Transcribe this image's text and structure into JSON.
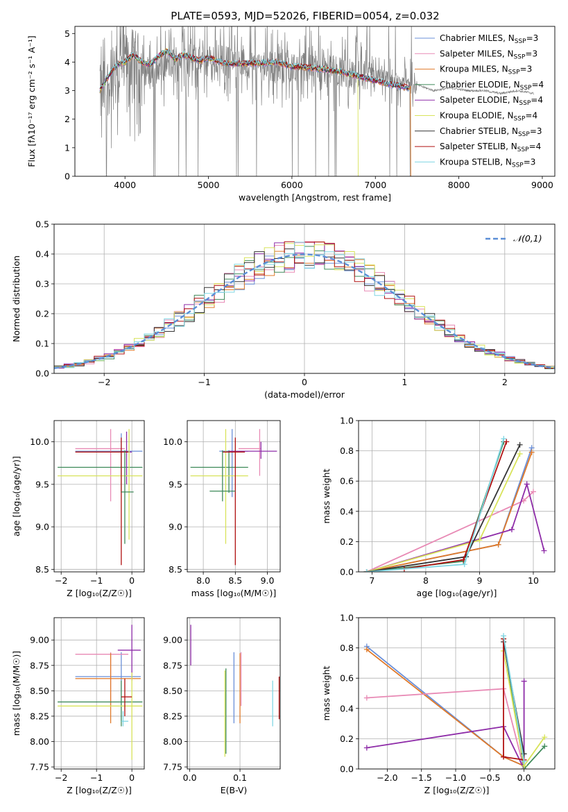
{
  "figure": {
    "title": "PLATE=0593, MJD=52026, FIBERID=0054, z=0.032"
  },
  "colors": {
    "palette": [
      "#6a8fd8",
      "#e88ab5",
      "#e07a2a",
      "#3f8a5a",
      "#8e2ca8",
      "#d8e35a",
      "#333333",
      "#b01010",
      "#7fd6e3"
    ],
    "observed": "#808080",
    "gaussian": "#5b8ed6",
    "grid": "#b0b0b0"
  },
  "chart_data": [
    {
      "type": "line",
      "id": "spectrum",
      "title": "PLATE=0593, MJD=52026, FIBERID=0054, z=0.032",
      "xlabel": "wavelength [Angstrom, rest frame]",
      "ylabel": "Flux [fλ10⁻¹⁷ erg cm⁻² s⁻¹ A⁻¹]",
      "xlim": [
        3400,
        9150
      ],
      "ylim": [
        0,
        5.25
      ],
      "xticks": [
        4000,
        5000,
        6000,
        7000,
        8000,
        9000
      ],
      "yticks": [
        0,
        1,
        2,
        3,
        4,
        5
      ],
      "grid": false,
      "legend_position": "top-right",
      "legend": [
        "Chabrier MILES, N_SSP=3",
        "Salpeter MILES, N_SSP=3",
        "Kroupa MILES, N_SSP=3",
        "Chabrier ELODIE, N_SSP=4",
        "Salpeter ELODIE, N_SSP=4",
        "Kroupa ELODIE, N_SSP=4",
        "Chabrier STELIB, N_SSP=3",
        "Salpeter STELIB, N_SSP=4",
        "Kroupa STELIB, N_SSP=3"
      ],
      "observed": {
        "x": [
          3700,
          3850,
          4000,
          4100,
          4300,
          4500,
          4700,
          4900,
          5100,
          5300,
          5500,
          5700,
          5900,
          6100,
          6300,
          6500,
          6700,
          6900,
          7100,
          7300,
          7500,
          7700,
          7900,
          8100,
          8300,
          8500,
          8700,
          8900
        ],
        "y": [
          2.8,
          3.4,
          3.9,
          4.1,
          3.6,
          3.9,
          4.2,
          4.0,
          4.1,
          4.0,
          3.9,
          3.9,
          3.8,
          3.9,
          3.8,
          3.7,
          3.6,
          3.5,
          3.4,
          3.3,
          3.2,
          3.0,
          3.1,
          3.0,
          3.0,
          2.9,
          3.0,
          2.9
        ],
        "noise_start": 3700,
        "noise_end": 7500
      },
      "model": {
        "x": [
          3700,
          3800,
          3900,
          4000,
          4100,
          4200,
          4300,
          4400,
          4500,
          4600,
          4700,
          4800,
          4900,
          5000,
          5200,
          5400,
          5600,
          5800,
          6000,
          6200,
          6400,
          6600,
          6800,
          7000,
          7200,
          7400
        ],
        "y": [
          3.0,
          3.5,
          3.9,
          4.0,
          4.25,
          4.0,
          3.9,
          4.2,
          4.4,
          4.1,
          4.25,
          4.15,
          4.05,
          4.15,
          3.95,
          3.95,
          3.95,
          4.0,
          3.85,
          3.8,
          3.75,
          3.65,
          3.5,
          3.35,
          3.2,
          3.1
        ]
      },
      "cutoffs": [
        {
          "series": 5,
          "x": 6790
        },
        {
          "series": 2,
          "x": 7420
        }
      ]
    },
    {
      "type": "histogram",
      "id": "residuals",
      "xlabel": "(data-model)/error",
      "ylabel": "Normed distribution",
      "xlim": [
        -2.5,
        2.5
      ],
      "ylim": [
        0,
        0.5
      ],
      "xticks": [
        -2,
        -1,
        0,
        1,
        2
      ],
      "yticks": [
        0,
        0.1,
        0.2,
        0.3,
        0.4,
        0.5
      ],
      "grid": true,
      "legend": [
        "𝒩(0,1)"
      ],
      "legend_position": "top-right",
      "bin_width": 0.1,
      "bins_from": -2.5,
      "bins_to": 2.5
    },
    {
      "type": "scatter",
      "id": "age-vs-Z",
      "xlabel": "Z [log₁₀(Z/Z☉)]",
      "ylabel": "age  [log₁₀(age/yr)]",
      "xlim": [
        -2.2,
        0.35
      ],
      "ylim": [
        8.47,
        10.25
      ],
      "xticks": [
        -2,
        -1,
        0
      ],
      "yticks": [
        8.5,
        9.0,
        9.5,
        10.0
      ],
      "grid": true,
      "crosses": [
        {
          "s": 0,
          "x": -0.3,
          "y": 9.89,
          "xr": [
            -1.6,
            0.3
          ],
          "yr": [
            9.6,
            10.1
          ]
        },
        {
          "s": 1,
          "x": -0.6,
          "y": 9.92,
          "xr": [
            -1.6,
            -0.2
          ],
          "yr": [
            9.3,
            10.15
          ]
        },
        {
          "s": 3,
          "x": -0.3,
          "y": 9.7,
          "xr": [
            -2.1,
            0.3
          ],
          "yr": [
            9.4,
            9.9
          ]
        },
        {
          "s": 4,
          "x": -0.15,
          "y": 9.88,
          "xr": [
            -0.35,
            0.0
          ],
          "yr": [
            9.5,
            10.12
          ]
        },
        {
          "s": 5,
          "x": -0.08,
          "y": 9.6,
          "xr": [
            -2.1,
            0.3
          ],
          "yr": [
            8.85,
            10.15
          ]
        },
        {
          "s": 7,
          "x": -0.3,
          "y": 9.88,
          "xr": [
            -1.6,
            -0.1
          ],
          "yr": [
            8.55,
            10.05
          ]
        },
        {
          "s": 3,
          "x": -0.2,
          "y": 9.41,
          "xr": [
            -0.3,
            0.05
          ],
          "yr": [
            8.8,
            9.9
          ]
        }
      ]
    },
    {
      "type": "scatter",
      "id": "age-vs-mass",
      "xlabel": "mass [log₁₀(M/M☉)]",
      "ylabel": "",
      "xlim": [
        7.75,
        9.2
      ],
      "ylim": [
        8.47,
        10.25
      ],
      "xticks": [
        8.0,
        8.5,
        9.0
      ],
      "yticks": [
        8.5,
        9.0,
        9.5,
        10.0
      ],
      "grid": true,
      "crosses": [
        {
          "s": 0,
          "x": 8.45,
          "y": 9.89,
          "xr": [
            8.25,
            8.7
          ],
          "yr": [
            9.35,
            10.15
          ]
        },
        {
          "s": 1,
          "x": 8.88,
          "y": 9.92,
          "xr": [
            8.55,
            8.9
          ],
          "yr": [
            9.6,
            10.15
          ]
        },
        {
          "s": 3,
          "x": 8.4,
          "y": 9.7,
          "xr": [
            7.8,
            8.7
          ],
          "yr": [
            9.4,
            9.9
          ]
        },
        {
          "s": 4,
          "x": 8.9,
          "y": 9.89,
          "xr": [
            8.4,
            9.15
          ],
          "yr": [
            9.8,
            10.0
          ]
        },
        {
          "s": 5,
          "x": 8.35,
          "y": 9.6,
          "xr": [
            7.8,
            8.7
          ],
          "yr": [
            8.8,
            10.15
          ]
        },
        {
          "s": 7,
          "x": 8.5,
          "y": 9.88,
          "xr": [
            8.3,
            8.65
          ],
          "yr": [
            8.55,
            10.05
          ]
        },
        {
          "s": 3,
          "x": 8.3,
          "y": 9.42,
          "xr": [
            8.1,
            8.5
          ],
          "yr": [
            9.3,
            9.9
          ]
        }
      ]
    },
    {
      "type": "line",
      "id": "mass-weight-vs-age",
      "xlabel": "age  [log₁₀(age/yr)]",
      "ylabel": "mass weight",
      "xlim": [
        6.75,
        10.4
      ],
      "ylim": [
        0,
        1.0
      ],
      "xticks": [
        7,
        8,
        9,
        10
      ],
      "yticks": [
        0,
        0.2,
        0.4,
        0.6,
        0.8,
        1.0
      ],
      "grid": true,
      "series": [
        {
          "s": 0,
          "x": [
            6.9,
            9.35,
            9.97
          ],
          "y": [
            0.0,
            0.18,
            0.82
          ]
        },
        {
          "s": 1,
          "x": [
            6.9,
            9.82,
            10.0
          ],
          "y": [
            0.0,
            0.47,
            0.53
          ]
        },
        {
          "s": 2,
          "x": [
            6.9,
            9.35,
            9.97
          ],
          "y": [
            0.0,
            0.18,
            0.79
          ]
        },
        {
          "s": 3,
          "x": [
            6.9,
            8.7,
            9.45
          ],
          "y": [
            0.0,
            0.07,
            0.86
          ]
        },
        {
          "s": 4,
          "x": [
            6.9,
            9.6,
            9.88,
            10.2
          ],
          "y": [
            0.0,
            0.28,
            0.58,
            0.14
          ]
        },
        {
          "s": 5,
          "x": [
            6.9,
            9.0,
            9.75
          ],
          "y": [
            0.0,
            0.21,
            0.78
          ]
        },
        {
          "s": 6,
          "x": [
            6.9,
            8.75,
            9.75
          ],
          "y": [
            0.0,
            0.1,
            0.84
          ]
        },
        {
          "s": 7,
          "x": [
            7.6,
            8.7,
            9.5
          ],
          "y": [
            0.02,
            0.08,
            0.86
          ]
        },
        {
          "s": 8,
          "x": [
            6.9,
            8.72,
            9.45
          ],
          "y": [
            0.0,
            0.05,
            0.88
          ]
        }
      ]
    },
    {
      "type": "scatter",
      "id": "mass-vs-Z",
      "xlabel": "Z [log₁₀(Z/Z☉)]",
      "ylabel": "mass [log₁₀(M/M☉)]",
      "xlim": [
        -2.2,
        0.35
      ],
      "ylim": [
        7.73,
        9.22
      ],
      "xticks": [
        -2,
        -1,
        0
      ],
      "yticks": [
        7.75,
        8.0,
        8.25,
        8.5,
        8.75,
        9.0
      ],
      "grid": true,
      "crosses": [
        {
          "s": 0,
          "x": -0.3,
          "y": 8.64,
          "xr": [
            -1.6,
            0.25
          ],
          "yr": [
            8.2,
            8.88
          ]
        },
        {
          "s": 1,
          "x": -0.6,
          "y": 8.86,
          "xr": [
            -1.6,
            -0.1
          ],
          "yr": [
            8.35,
            8.88
          ]
        },
        {
          "s": 2,
          "x": -0.6,
          "y": 8.62,
          "xr": [
            -1.6,
            0.25
          ],
          "yr": [
            8.18,
            8.87
          ]
        },
        {
          "s": 3,
          "x": -0.3,
          "y": 8.39,
          "xr": [
            -2.1,
            0.3
          ],
          "yr": [
            8.15,
            8.6
          ]
        },
        {
          "s": 4,
          "x": 0.0,
          "y": 8.9,
          "xr": [
            -0.4,
            0.25
          ],
          "yr": [
            8.6,
            9.15
          ]
        },
        {
          "s": 5,
          "x": 0.0,
          "y": 8.35,
          "xr": [
            -2.1,
            0.3
          ],
          "yr": [
            7.82,
            8.68
          ]
        },
        {
          "s": 7,
          "x": -0.2,
          "y": 8.44,
          "xr": [
            -0.3,
            0.0
          ],
          "yr": [
            8.25,
            8.62
          ]
        },
        {
          "s": 8,
          "x": -0.25,
          "y": 8.2,
          "xr": [
            -0.3,
            -0.1
          ],
          "yr": [
            8.15,
            8.3
          ]
        }
      ]
    },
    {
      "type": "scatter",
      "id": "mass-vs-EBV",
      "xlabel": "E(B-V)",
      "ylabel": "",
      "xlim": [
        -0.005,
        0.18
      ],
      "ylim": [
        7.73,
        9.22
      ],
      "xticks": [
        0.0,
        0.1
      ],
      "yticks": [
        7.75,
        8.0,
        8.25,
        8.5,
        8.75,
        9.0
      ],
      "grid": true,
      "bars": [
        {
          "s": 4,
          "x": 0.002,
          "yr": [
            8.75,
            9.15
          ]
        },
        {
          "s": 3,
          "x": 0.072,
          "yr": [
            7.88,
            8.72
          ]
        },
        {
          "s": 5,
          "x": 0.07,
          "yr": [
            7.85,
            8.7
          ]
        },
        {
          "s": 0,
          "x": 0.088,
          "yr": [
            8.18,
            8.88
          ]
        },
        {
          "s": 2,
          "x": 0.1,
          "yr": [
            8.18,
            8.87
          ]
        },
        {
          "s": 1,
          "x": 0.102,
          "yr": [
            8.35,
            8.88
          ]
        },
        {
          "s": 8,
          "x": 0.165,
          "yr": [
            8.15,
            8.6
          ]
        },
        {
          "s": 7,
          "x": 0.178,
          "yr": [
            8.22,
            8.64
          ]
        }
      ]
    },
    {
      "type": "line",
      "id": "mass-weight-vs-Z",
      "xlabel": "Z [log₁₀(Z/Z☉)]",
      "ylabel": "mass weight",
      "xlim": [
        -2.42,
        0.45
      ],
      "ylim": [
        0,
        1.0
      ],
      "xticks": [
        -2.0,
        -1.5,
        -1.0,
        -0.5,
        0.0
      ],
      "yticks": [
        0,
        0.2,
        0.4,
        0.6,
        0.8,
        1.0
      ],
      "grid": true,
      "series": [
        {
          "s": 0,
          "x": [
            -2.3,
            -0.3,
            0.0
          ],
          "y": [
            0.81,
            0.08,
            0.02
          ]
        },
        {
          "s": 2,
          "x": [
            -2.3,
            -0.3,
            0.0
          ],
          "y": [
            0.79,
            0.08,
            0.02
          ]
        },
        {
          "s": 1,
          "x": [
            -2.3,
            -0.3,
            0.0
          ],
          "y": [
            0.47,
            0.53,
            0.0
          ]
        },
        {
          "s": 4,
          "x": [
            -2.3,
            -0.3,
            0.0,
            0.0
          ],
          "y": [
            0.14,
            0.28,
            0.0,
            0.58
          ]
        },
        {
          "s": 3,
          "x": [
            -0.3,
            0.0,
            0.3
          ],
          "y": [
            0.86,
            0.0,
            0.15
          ]
        },
        {
          "s": 5,
          "x": [
            -0.3,
            0.0,
            0.3
          ],
          "y": [
            0.78,
            0.02,
            0.21
          ]
        },
        {
          "s": 6,
          "x": [
            -0.3,
            0.0
          ],
          "y": [
            0.84,
            0.1
          ]
        },
        {
          "s": 7,
          "x": [
            -0.3,
            -0.3,
            0.0
          ],
          "y": [
            0.86,
            0.08,
            0.06
          ]
        },
        {
          "s": 8,
          "x": [
            -0.3,
            0.0
          ],
          "y": [
            0.88,
            0.05
          ]
        }
      ]
    }
  ]
}
